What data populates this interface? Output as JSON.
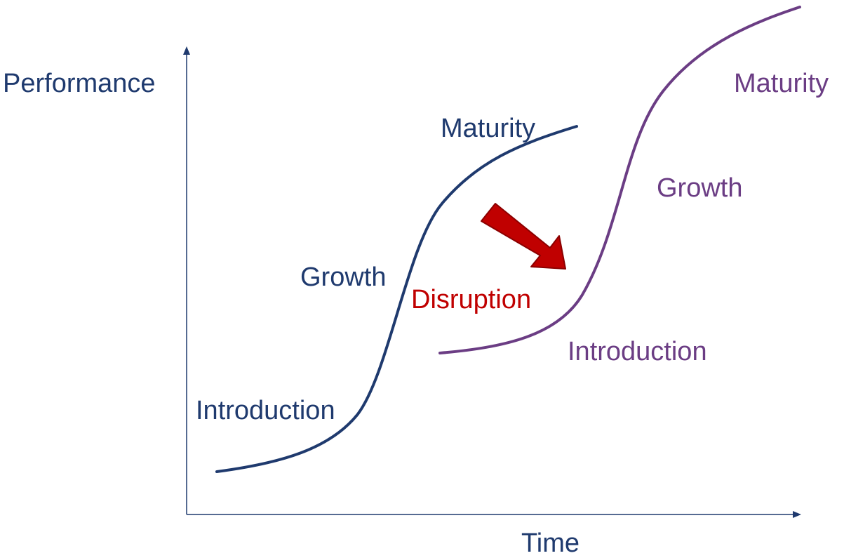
{
  "axes": {
    "x_label": "Time",
    "y_label": "Performance"
  },
  "curve1": {
    "color": "#1f3a6e",
    "stages": {
      "introduction": "Introduction",
      "growth": "Growth",
      "maturity": "Maturity"
    }
  },
  "curve2": {
    "color": "#6b3d84",
    "stages": {
      "introduction": "Introduction",
      "growth": "Growth",
      "maturity": "Maturity"
    }
  },
  "disruption": {
    "label": "Disruption",
    "color": "#c00000"
  },
  "colors": {
    "axis": "#1f3a6e",
    "arrow_fill": "#c00000",
    "arrow_stroke": "#8b0000"
  }
}
